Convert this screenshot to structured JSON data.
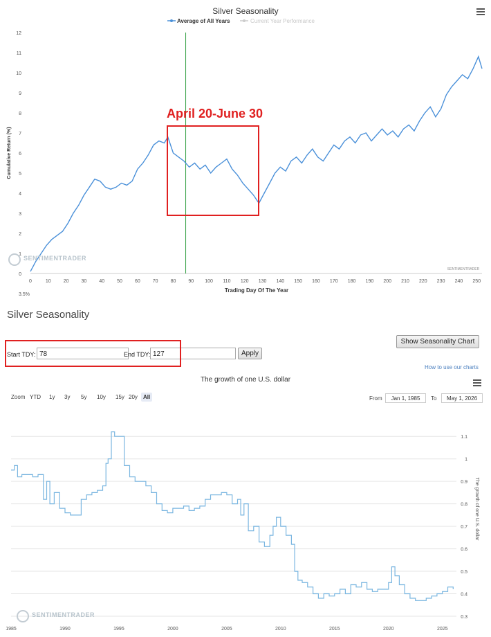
{
  "top_chart": {
    "menu_icon": "hamburger-menu-icon",
    "watermark": "SENTIMENTRADER",
    "watermark_small": "SENTIMENTRADER",
    "bottom_left_note": "3.5%",
    "annotation_label": "April 20-June 30",
    "annotation_color": "#e02020",
    "series_color": "#4a90d9",
    "marker_color": "#2e9e3e"
  },
  "bottom_chart": {
    "menu_icon": "hamburger-menu-icon",
    "watermark": "SENTIMENTRADER",
    "series_color": "#7ab6e0"
  },
  "form": {
    "section_title": "Silver Seasonality",
    "start_label": "Start TDY:",
    "start_value": "78",
    "end_label": "End TDY:",
    "end_value": "127",
    "apply_label": "Apply",
    "show_chart_label": "Show Seasonality Chart",
    "howto_link": "How to use our charts"
  },
  "zoom": {
    "label": "Zoom",
    "buttons": [
      "YTD",
      "1y",
      "3y",
      "5y",
      "10y",
      "15y",
      "20y",
      "All"
    ],
    "active": "All",
    "from_label": "From",
    "from_value": "Jan 1, 1985",
    "to_label": "To",
    "to_value": "May 1, 2026"
  },
  "chart_data": [
    {
      "type": "line",
      "title": "Silver Seasonality",
      "xlabel": "Trading Day Of The Year",
      "ylabel": "Cumulative Return (%)",
      "xlim": [
        0,
        253
      ],
      "ylim": [
        0,
        12
      ],
      "xticks": [
        0,
        10,
        20,
        30,
        40,
        50,
        60,
        70,
        80,
        90,
        100,
        110,
        120,
        130,
        140,
        150,
        160,
        170,
        180,
        190,
        200,
        210,
        220,
        230,
        240,
        250
      ],
      "yticks": [
        0,
        1,
        2,
        3,
        4,
        5,
        6,
        7,
        8,
        9,
        10,
        11,
        12
      ],
      "legend": [
        "Average of All Years",
        "Current Year Performance"
      ],
      "legend_placement": "top",
      "marker_x": 87,
      "highlight_range": [
        78,
        127
      ],
      "series": [
        {
          "name": "Average of All Years",
          "x": [
            0,
            3,
            6,
            9,
            12,
            15,
            18,
            21,
            24,
            27,
            30,
            33,
            36,
            39,
            42,
            45,
            48,
            51,
            54,
            57,
            60,
            63,
            66,
            69,
            72,
            75,
            77,
            80,
            83,
            86,
            89,
            92,
            95,
            98,
            101,
            104,
            107,
            110,
            113,
            116,
            119,
            122,
            125,
            128,
            131,
            134,
            137,
            140,
            143,
            146,
            149,
            152,
            155,
            158,
            161,
            164,
            167,
            170,
            173,
            176,
            179,
            182,
            185,
            188,
            191,
            194,
            197,
            200,
            203,
            206,
            209,
            212,
            215,
            218,
            221,
            224,
            227,
            230,
            233,
            236,
            239,
            242,
            245,
            248,
            251,
            253
          ],
          "y": [
            0.1,
            0.6,
            1.0,
            1.4,
            1.7,
            1.9,
            2.1,
            2.5,
            3.0,
            3.4,
            3.9,
            4.3,
            4.7,
            4.6,
            4.3,
            4.2,
            4.3,
            4.5,
            4.4,
            4.6,
            5.2,
            5.5,
            5.9,
            6.4,
            6.6,
            6.5,
            6.8,
            6.0,
            5.8,
            5.6,
            5.3,
            5.5,
            5.2,
            5.4,
            5.0,
            5.3,
            5.5,
            5.7,
            5.2,
            4.9,
            4.5,
            4.2,
            3.9,
            3.5,
            4.0,
            4.5,
            5.0,
            5.3,
            5.1,
            5.6,
            5.8,
            5.5,
            5.9,
            6.2,
            5.8,
            5.6,
            6.0,
            6.4,
            6.2,
            6.6,
            6.8,
            6.5,
            6.9,
            7.0,
            6.6,
            6.9,
            7.2,
            6.9,
            7.1,
            6.8,
            7.2,
            7.4,
            7.1,
            7.6,
            8.0,
            8.3,
            7.8,
            8.2,
            8.9,
            9.3,
            9.6,
            9.9,
            9.7,
            10.2,
            10.8,
            10.2
          ]
        }
      ]
    },
    {
      "type": "line",
      "title": "The growth of one U.S. dollar",
      "xlabel": "",
      "ylabel": "The growth of one U.S. dollar",
      "xlim": [
        1985,
        2026.3
      ],
      "ylim": [
        0.3,
        1.15
      ],
      "xticks": [
        1985,
        1990,
        1995,
        2000,
        2005,
        2010,
        2015,
        2020,
        2025
      ],
      "yticks": [
        0.3,
        0.4,
        0.5,
        0.6,
        0.7,
        0.8,
        0.9,
        1,
        1.1
      ],
      "series": [
        {
          "name": "",
          "x": [
            1985.0,
            1985.3,
            1985.6,
            1986.0,
            1986.5,
            1987.0,
            1987.5,
            1988.0,
            1988.3,
            1988.6,
            1989.0,
            1989.5,
            1990.0,
            1990.5,
            1991.0,
            1991.5,
            1992.0,
            1992.5,
            1993.0,
            1993.5,
            1993.8,
            1994.0,
            1994.3,
            1994.6,
            1995.0,
            1995.5,
            1996.0,
            1996.5,
            1997.0,
            1997.5,
            1998.0,
            1998.5,
            1999.0,
            1999.5,
            2000.0,
            2000.5,
            2001.0,
            2001.5,
            2002.0,
            2002.5,
            2003.0,
            2003.5,
            2004.0,
            2004.5,
            2005.0,
            2005.5,
            2006.0,
            2006.3,
            2006.6,
            2007.0,
            2007.5,
            2008.0,
            2008.5,
            2009.0,
            2009.3,
            2009.6,
            2010.0,
            2010.5,
            2011.0,
            2011.3,
            2011.6,
            2012.0,
            2012.5,
            2013.0,
            2013.5,
            2014.0,
            2014.5,
            2015.0,
            2015.5,
            2016.0,
            2016.5,
            2017.0,
            2017.5,
            2018.0,
            2018.5,
            2019.0,
            2019.5,
            2020.0,
            2020.3,
            2020.6,
            2021.0,
            2021.5,
            2022.0,
            2022.5,
            2023.0,
            2023.5,
            2024.0,
            2024.5,
            2025.0,
            2025.5,
            2026.0
          ],
          "y": [
            0.95,
            0.97,
            0.92,
            0.93,
            0.93,
            0.92,
            0.93,
            0.82,
            0.9,
            0.8,
            0.85,
            0.78,
            0.76,
            0.75,
            0.75,
            0.82,
            0.84,
            0.85,
            0.86,
            0.88,
            0.98,
            1.0,
            1.12,
            1.1,
            1.1,
            0.97,
            0.92,
            0.9,
            0.9,
            0.88,
            0.85,
            0.8,
            0.77,
            0.76,
            0.78,
            0.78,
            0.79,
            0.77,
            0.78,
            0.79,
            0.82,
            0.84,
            0.84,
            0.85,
            0.84,
            0.8,
            0.82,
            0.75,
            0.8,
            0.68,
            0.7,
            0.63,
            0.61,
            0.66,
            0.7,
            0.74,
            0.7,
            0.66,
            0.62,
            0.5,
            0.46,
            0.45,
            0.43,
            0.4,
            0.38,
            0.4,
            0.39,
            0.4,
            0.42,
            0.4,
            0.44,
            0.43,
            0.45,
            0.42,
            0.41,
            0.42,
            0.42,
            0.45,
            0.52,
            0.48,
            0.44,
            0.4,
            0.38,
            0.37,
            0.37,
            0.38,
            0.39,
            0.4,
            0.41,
            0.43,
            0.42
          ]
        }
      ]
    }
  ]
}
